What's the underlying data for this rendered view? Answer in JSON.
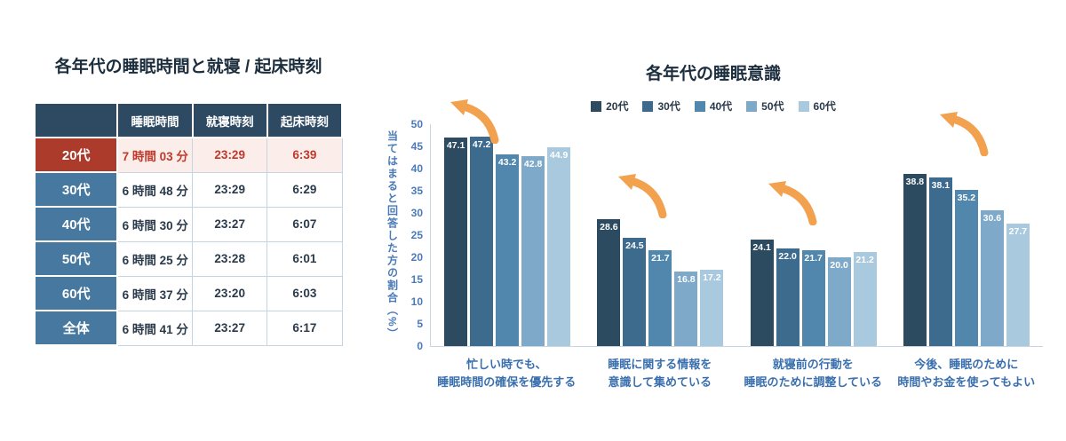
{
  "colors": {
    "table_header_bg": "#2E4A63",
    "table_row_label_bg": "#47789F",
    "highlight_label_bg": "#AC3B2B",
    "highlight_row_bg": "#FBEDE9",
    "highlight_text": "#C0392B",
    "table_text": "#2B3A4A",
    "axis_text": "#4A7AB8",
    "category_text": "#3A6FAE",
    "arrow": "#F2A14E"
  },
  "table": {
    "title": "各年代の睡眠時間と就寝 / 起床時刻",
    "headers": [
      "",
      "睡眠時間",
      "就寝時刻",
      "起床時刻"
    ],
    "rows": [
      {
        "label": "20代",
        "sleep": "7 時間 03 分",
        "bed": "23:29",
        "wake": "6:39",
        "highlight": true
      },
      {
        "label": "30代",
        "sleep": "6 時間 48 分",
        "bed": "23:29",
        "wake": "6:29"
      },
      {
        "label": "40代",
        "sleep": "6 時間 30 分",
        "bed": "23:27",
        "wake": "6:07"
      },
      {
        "label": "50代",
        "sleep": "6 時間 25 分",
        "bed": "23:28",
        "wake": "6:01"
      },
      {
        "label": "60代",
        "sleep": "6 時間 37 分",
        "bed": "23:20",
        "wake": "6:03"
      },
      {
        "label": "全体",
        "sleep": "6 時間 41 分",
        "bed": "23:27",
        "wake": "6:17"
      }
    ]
  },
  "chart_data": {
    "type": "bar",
    "title": "各年代の睡眠意識",
    "ylabel": "当てはまると回答した方の割合（%）",
    "ylim": [
      0,
      50
    ],
    "ytick_step": 5,
    "grid": false,
    "legend_position": "top",
    "categories": [
      "忙しい時でも、\n睡眠時間の確保を優先する",
      "睡眠に関する情報を\n意識して集めている",
      "就寝前の行動を\n睡眠のために調整している",
      "今後、睡眠のために\n時間やお金を使ってもよい"
    ],
    "series": [
      {
        "name": "20代",
        "color": "#2D4B60",
        "values": [
          47.1,
          28.6,
          24.1,
          38.8
        ]
      },
      {
        "name": "30代",
        "color": "#3C6B8E",
        "values": [
          47.2,
          24.5,
          22.0,
          38.1
        ]
      },
      {
        "name": "40代",
        "color": "#5187AD",
        "values": [
          43.2,
          21.7,
          21.7,
          35.2
        ]
      },
      {
        "name": "50代",
        "color": "#7FA9C9",
        "values": [
          42.8,
          16.8,
          20.0,
          30.6
        ]
      },
      {
        "name": "60代",
        "color": "#A9C9DF",
        "values": [
          44.9,
          17.2,
          21.2,
          27.7
        ]
      }
    ]
  }
}
